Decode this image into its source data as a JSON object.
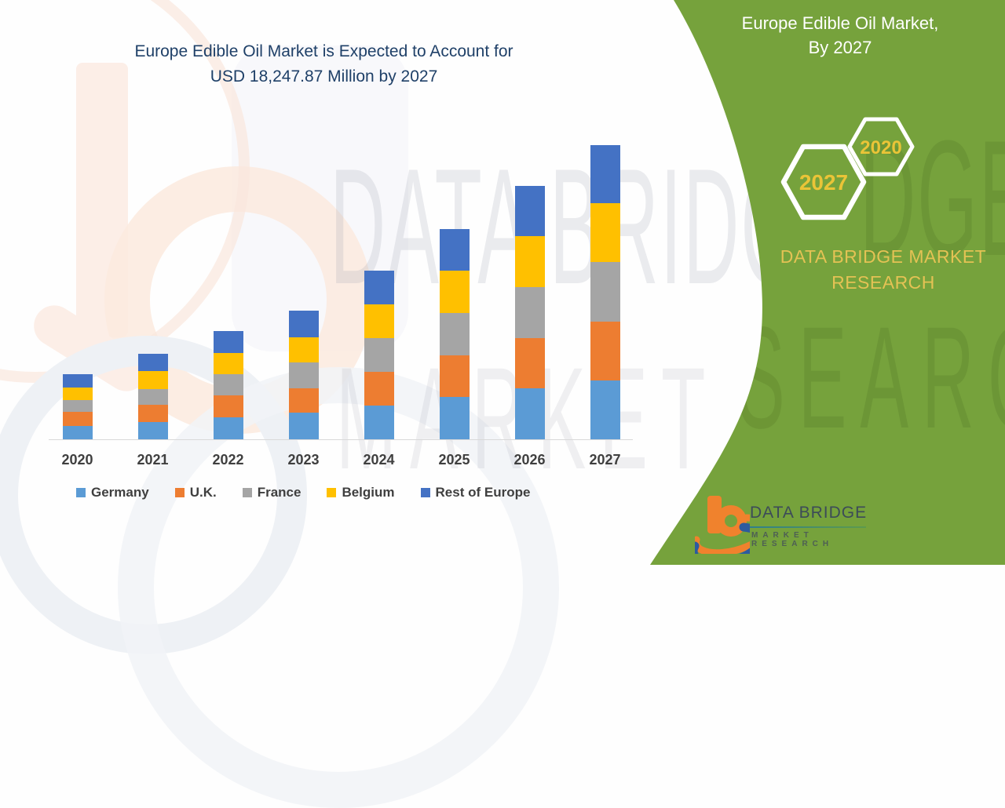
{
  "header": {
    "title_line1": "Europe Edible Oil Market is Expected to Account for",
    "title_line2": "USD 18,247.87 Million by 2027",
    "title_color": "#1F4068"
  },
  "watermark": {
    "word_top": "DATA BRIDGE",
    "word_bottom": "MARKET RESEARCH"
  },
  "panel": {
    "color": "#76A23C",
    "title_line1": "Europe Edible Oil Market,",
    "title_line2": "By 2027",
    "hexagons": [
      {
        "year": "2027"
      },
      {
        "year": "2020"
      }
    ],
    "hexagon_text_color": "#EAC437",
    "brand_line1": "DATA BRIDGE MARKET",
    "brand_line2": "RESEARCH",
    "brand_color": "#E4C254",
    "watermark_fragment_top": "DGE",
    "watermark_fragment_bottom": "SEARCH"
  },
  "logo": {
    "name_text": "DATA BRIDGE",
    "subtext": "MARKET RESEARCH",
    "orange": "#F0822D",
    "blue": "#2D5B9E",
    "name_color": "#3C4B58",
    "subtext_color": "#4E5F54"
  },
  "axis": {
    "line_color": "#D9D9D9",
    "label_color": "#3F3F3F"
  },
  "chart_data": {
    "type": "bar",
    "stacked": true,
    "title": "Europe Edible Oil Market is Expected to Account for USD 18,247.87 Million by 2027",
    "unit": "USD Million",
    "xlabel": "",
    "ylabel": "",
    "axes_labeled": false,
    "grid": false,
    "legend_position": "bottom",
    "categories": [
      "2020",
      "2021",
      "2022",
      "2023",
      "2024",
      "2025",
      "2026",
      "2027"
    ],
    "series": [
      {
        "name": "Germany",
        "color": "#5B9BD5",
        "values": [
          827,
          1071,
          1362,
          1654,
          2092,
          2628,
          3163,
          3650
        ]
      },
      {
        "name": "U.K.",
        "color": "#ED7D31",
        "values": [
          876,
          1071,
          1362,
          1508,
          2092,
          2579,
          3114,
          3650
        ]
      },
      {
        "name": "France",
        "color": "#A5A5A5",
        "values": [
          730,
          973,
          1314,
          1606,
          2092,
          2628,
          3163,
          3697
        ]
      },
      {
        "name": "Belgium",
        "color": "#FFC000",
        "values": [
          779,
          1119,
          1314,
          1557,
          2092,
          2628,
          3163,
          3650
        ]
      },
      {
        "name": "Rest of Europe",
        "color": "#4472C4",
        "values": [
          827,
          1071,
          1362,
          1654,
          2092,
          2579,
          3114,
          3601
        ]
      }
    ],
    "estimated_totals": [
      4039,
      5305,
      6714,
      7979,
      10460,
      13042,
      15717,
      18248
    ],
    "ylim": [
      0,
      18248
    ],
    "values_are_estimates_scaled_to_2027_total": true
  }
}
